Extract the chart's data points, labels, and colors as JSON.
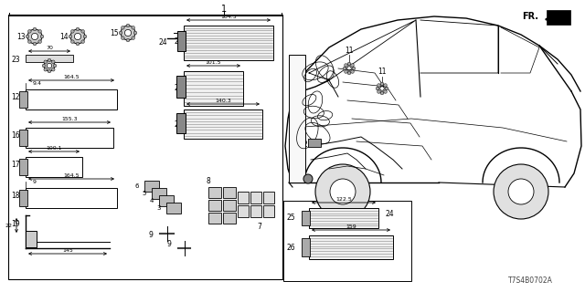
{
  "diagram_id": "T7S4B0702A",
  "bg_color": "#ffffff",
  "line_color": "#000000",
  "gray_color": "#888888",
  "light_gray": "#cccccc",
  "dark_gray": "#555555"
}
